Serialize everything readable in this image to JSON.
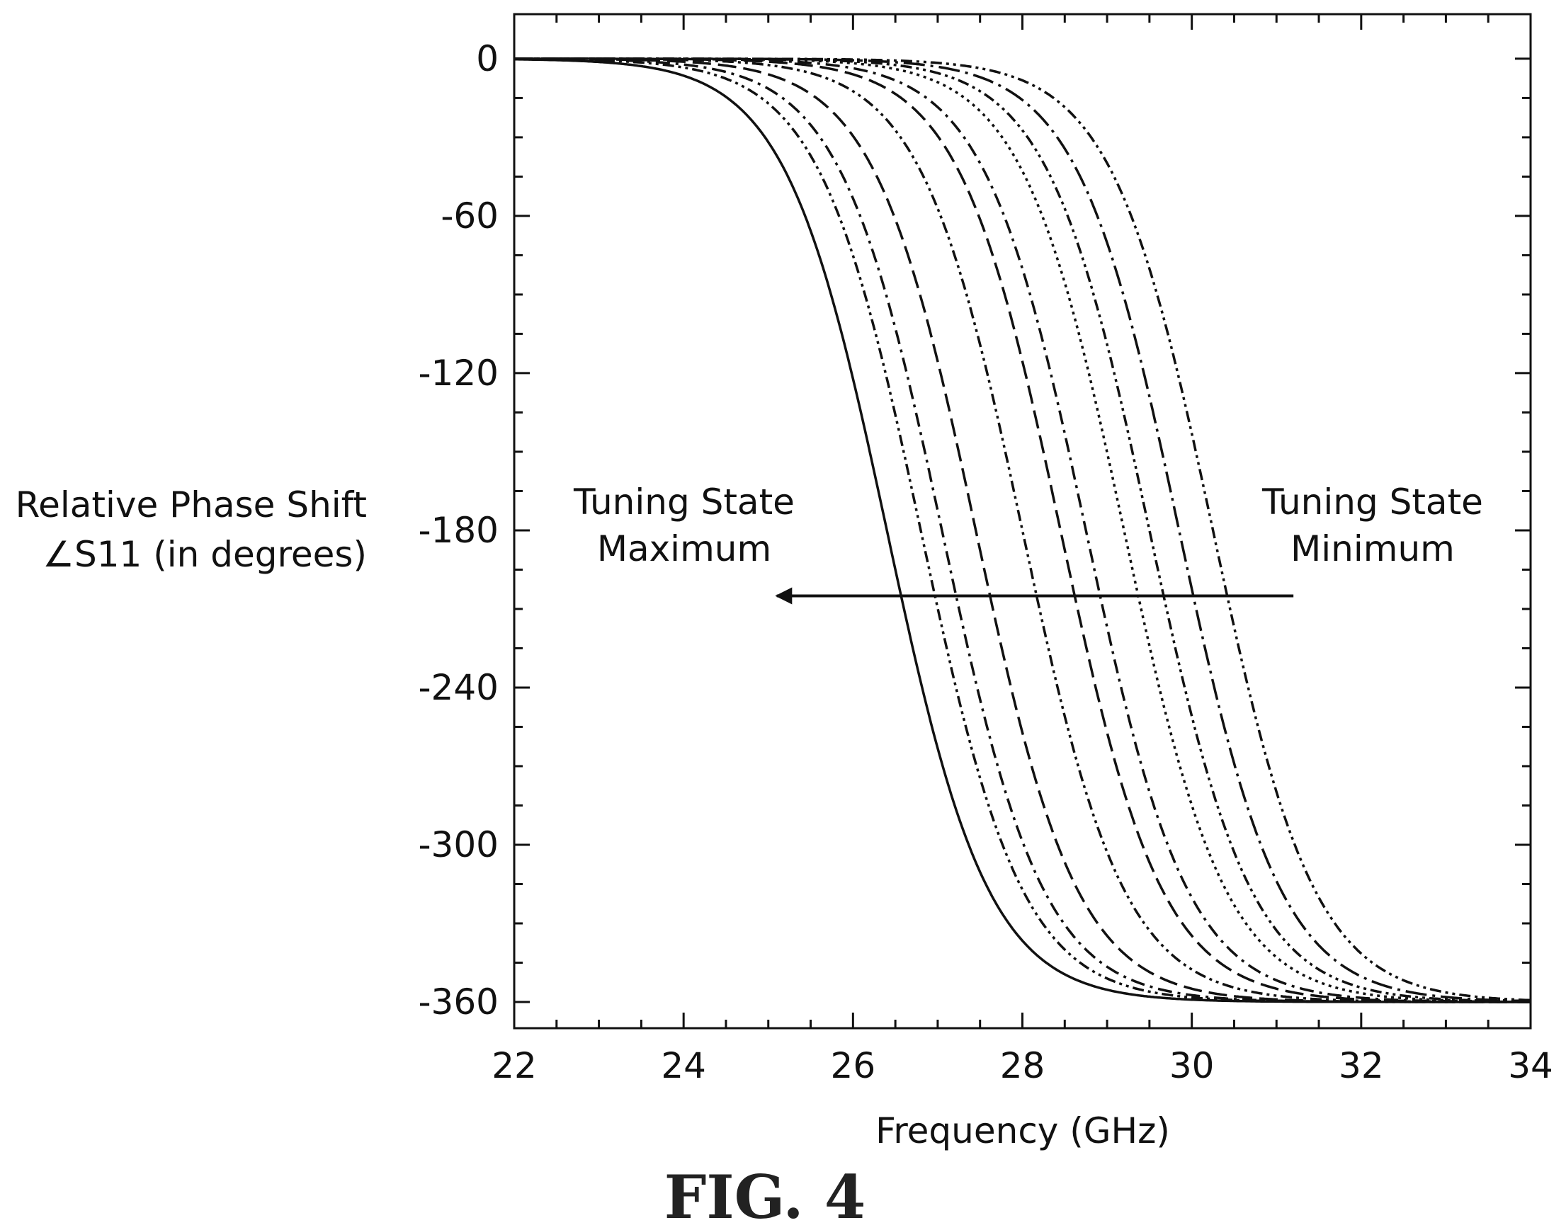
{
  "chart_data": {
    "type": "line",
    "title": "",
    "xlabel": "Frequency (GHz)",
    "ylabel": [
      "Relative Phase Shift",
      "∠S11 (in degrees)"
    ],
    "xlim": [
      22,
      34
    ],
    "ylim": [
      -370,
      17
    ],
    "x_ticks": [
      22,
      24,
      26,
      28,
      30,
      32,
      34
    ],
    "x_tick_labels": [
      "22",
      "24",
      "26",
      "28",
      "30",
      "32",
      "34"
    ],
    "y_ticks": [
      0,
      -60,
      -120,
      -180,
      -240,
      -300,
      -360
    ],
    "y_tick_labels": [
      "0",
      "-60",
      "-120",
      "-180",
      "-240",
      "-300",
      "-360"
    ],
    "grid": false,
    "curve_shape": "phase = -360 / (1 + exp(-(f - f_center) / w)), w = 0.6 GHz",
    "series": [
      {
        "center_ghz": 26.4,
        "dash": "solid"
      },
      {
        "center_ghz": 26.8,
        "dash": "dash-dot-dot"
      },
      {
        "center_ghz": 27.05,
        "dash": "dash-dot"
      },
      {
        "center_ghz": 27.45,
        "dash": "long-dash"
      },
      {
        "center_ghz": 28.0,
        "dash": "dash-dot-dot"
      },
      {
        "center_ghz": 28.45,
        "dash": "long-dash"
      },
      {
        "center_ghz": 28.75,
        "dash": "dash-dot"
      },
      {
        "center_ghz": 29.2,
        "dash": "dotted"
      },
      {
        "center_ghz": 29.5,
        "dash": "dash-dot-dot"
      },
      {
        "center_ghz": 29.85,
        "dash": "long-dash-dot"
      },
      {
        "center_ghz": 30.25,
        "dash": "dash-dot-dot"
      }
    ],
    "annotations": [
      {
        "lines": [
          "Tuning State",
          "Maximum"
        ],
        "x": 25.0,
        "y": -175
      },
      {
        "lines": [
          "Tuning State",
          "Minimum"
        ],
        "x": 32.1,
        "y": -175
      },
      {
        "type": "arrow",
        "from": [
          31.2,
          -205
        ],
        "to": [
          25.1,
          -205
        ]
      }
    ]
  },
  "caption": "FIG. 4"
}
